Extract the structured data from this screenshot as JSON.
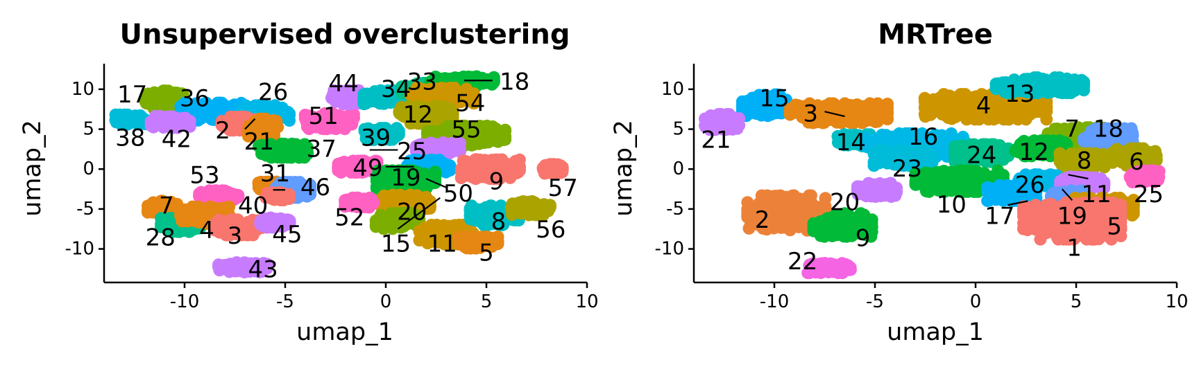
{
  "chart_data": [
    {
      "type": "scatter",
      "title": "Unsupervised overclustering",
      "xlabel": "umap_1",
      "ylabel": "umap_2",
      "xlim": [
        -14,
        10
      ],
      "ylim": [
        -14.2,
        13.2
      ],
      "xticks": [
        -10,
        -5,
        0,
        5,
        10
      ],
      "yticks": [
        -10,
        -5,
        0,
        5,
        10
      ],
      "grid": false,
      "clusters": [
        {
          "label": "17",
          "color": "#7CAE00",
          "x": -11.0,
          "y": 8.6,
          "sx": 0.8,
          "sy": 1.0,
          "lx": -12.6,
          "ly": 9.3
        },
        {
          "label": "36",
          "color": "#00B0F6",
          "x": -8.5,
          "y": 7.2,
          "sx": 1.4,
          "sy": 0.9,
          "lx": -9.5,
          "ly": 8.8
        },
        {
          "label": "26",
          "color": "#00B8E7",
          "x": -6.0,
          "y": 7.0,
          "sx": 1.0,
          "sy": 0.8,
          "lx": -5.6,
          "ly": 9.6
        },
        {
          "label": "38",
          "color": "#00BCD8",
          "x": -12.7,
          "y": 6.2,
          "sx": 0.6,
          "sy": 0.5,
          "lx": -12.7,
          "ly": 3.9
        },
        {
          "label": "42",
          "color": "#C77CFF",
          "x": -10.7,
          "y": 5.9,
          "sx": 0.8,
          "sy": 0.6,
          "lx": -10.4,
          "ly": 3.7
        },
        {
          "label": "2",
          "color": "#F8766D",
          "x": -7.3,
          "y": 5.7,
          "sx": 0.7,
          "sy": 0.7,
          "lx": -8.1,
          "ly": 4.8,
          "leader": [
            -7.0,
            5.0,
            -6.5,
            6.3
          ]
        },
        {
          "label": "21",
          "color": "#E68613",
          "x": -6.1,
          "y": 5.2,
          "sx": 0.6,
          "sy": 0.9,
          "lx": -6.3,
          "ly": 3.4
        },
        {
          "label": "51",
          "color": "#FF61C3",
          "x": -2.8,
          "y": 6.0,
          "sx": 1.0,
          "sy": 0.8,
          "lx": -3.1,
          "ly": 6.6
        },
        {
          "label": "44",
          "color": "#C77CFF",
          "x": -1.8,
          "y": 9.0,
          "sx": 0.8,
          "sy": 0.7,
          "lx": -2.1,
          "ly": 10.7
        },
        {
          "label": "34",
          "color": "#00BFC4",
          "x": 0.0,
          "y": 9.0,
          "sx": 0.9,
          "sy": 0.7,
          "lx": 0.5,
          "ly": 10.0
        },
        {
          "label": "33",
          "color": "#00C08B",
          "x": 2.0,
          "y": 9.8,
          "sx": 1.0,
          "sy": 0.8,
          "lx": 1.8,
          "ly": 10.9
        },
        {
          "label": "18",
          "color": "#00BA38",
          "x": 3.8,
          "y": 11.0,
          "sx": 1.3,
          "sy": 0.5,
          "lx": 6.4,
          "ly": 10.9,
          "leader": [
            3.9,
            11.1,
            5.3,
            11.1
          ]
        },
        {
          "label": "54",
          "color": "#CD9600",
          "x": 2.8,
          "y": 9.2,
          "sx": 1.3,
          "sy": 0.8,
          "lx": 4.2,
          "ly": 8.2
        },
        {
          "label": "12",
          "color": "#ABA300",
          "x": 2.0,
          "y": 6.8,
          "sx": 1.1,
          "sy": 0.9,
          "lx": 1.6,
          "ly": 6.8
        },
        {
          "label": "39",
          "color": "#00BFC4",
          "x": -0.2,
          "y": 4.4,
          "sx": 0.7,
          "sy": 0.6,
          "lx": -0.5,
          "ly": 3.9
        },
        {
          "label": "55",
          "color": "#7CAE00",
          "x": 4.0,
          "y": 4.2,
          "sx": 1.6,
          "sy": 1.0,
          "lx": 4.0,
          "ly": 4.9
        },
        {
          "label": "37",
          "color": "#00BA38",
          "x": -5.1,
          "y": 2.3,
          "sx": 1.0,
          "sy": 0.7,
          "lx": -3.2,
          "ly": 2.5
        },
        {
          "label": "25",
          "color": "#C77CFF",
          "x": 2.6,
          "y": 2.6,
          "sx": 0.9,
          "sy": 0.7,
          "lx": 1.3,
          "ly": 2.2,
          "leader": [
            -0.8,
            2.4,
            0.6,
            2.4
          ]
        },
        {
          "label": "49",
          "color": "#FF61C3",
          "x": -1.4,
          "y": 0.3,
          "sx": 0.8,
          "sy": 0.6,
          "lx": -0.9,
          "ly": 0.1
        },
        {
          "label": "19",
          "color": "#00B0F6",
          "x": 2.1,
          "y": 0.3,
          "sx": 0.9,
          "sy": 0.7,
          "lx": 1.0,
          "ly": -1.1,
          "leader": [
            0.0,
            0.3,
            1.4,
            0.3
          ]
        },
        {
          "label": "9",
          "color": "#F8766D",
          "x": 5.2,
          "y": 0.0,
          "sx": 1.2,
          "sy": 1.0,
          "lx": 5.5,
          "ly": -1.6
        },
        {
          "label": "57",
          "color": "#F8766D",
          "x": 8.3,
          "y": 0.0,
          "sx": 0.4,
          "sy": 0.5,
          "lx": 8.8,
          "ly": -2.4
        },
        {
          "label": "53",
          "color": "#FF61C3",
          "x": -8.3,
          "y": -3.3,
          "sx": 0.8,
          "sy": 0.5,
          "lx": -9.0,
          "ly": -0.8
        },
        {
          "label": "31",
          "color": "#E68613",
          "x": -5.6,
          "y": -2.2,
          "sx": 0.6,
          "sy": 0.5,
          "lx": -5.5,
          "ly": -0.6
        },
        {
          "label": "46",
          "color": "#619CFF",
          "x": -4.6,
          "y": -2.6,
          "sx": 0.7,
          "sy": 0.8,
          "lx": -3.5,
          "ly": -2.3,
          "leader": [
            -5.6,
            -2.6,
            -5.0,
            -2.6
          ]
        },
        {
          "label": "40",
          "color": "#F8766D",
          "x": -5.4,
          "y": -3.4,
          "sx": 0.5,
          "sy": 0.4,
          "lx": -6.6,
          "ly": -4.6
        },
        {
          "label": "50",
          "color": "#00BA38",
          "x": 1.0,
          "y": -1.4,
          "sx": 1.2,
          "sy": 1.0,
          "lx": 3.6,
          "ly": -3.1,
          "leader": [
            2.0,
            -1.2,
            3.0,
            -2.3
          ]
        },
        {
          "label": "7",
          "color": "#E68613",
          "x": -11.1,
          "y": -4.7,
          "sx": 0.6,
          "sy": 0.6,
          "lx": -10.9,
          "ly": -4.6
        },
        {
          "label": "28",
          "color": "#00C08B",
          "x": -10.2,
          "y": -7.0,
          "sx": 0.8,
          "sy": 0.7,
          "lx": -11.2,
          "ly": -8.6
        },
        {
          "label": "4",
          "color": "#E68613",
          "x": -9.0,
          "y": -5.8,
          "sx": 1.0,
          "sy": 0.9,
          "lx": -8.9,
          "ly": -7.7
        },
        {
          "label": "3",
          "color": "#F8766D",
          "x": -7.3,
          "y": -7.3,
          "sx": 1.0,
          "sy": 0.8,
          "lx": -7.5,
          "ly": -8.4
        },
        {
          "label": "45",
          "color": "#C77CFF",
          "x": -5.5,
          "y": -6.7,
          "sx": 0.6,
          "sy": 0.5,
          "lx": -4.9,
          "ly": -8.2
        },
        {
          "label": "20",
          "color": "#CD9600",
          "x": 1.0,
          "y": -4.2,
          "sx": 1.0,
          "sy": 0.8,
          "lx": 1.3,
          "ly": -5.4
        },
        {
          "label": "52",
          "color": "#FF61C3",
          "x": -1.3,
          "y": -4.2,
          "sx": 0.6,
          "sy": 0.5,
          "lx": -1.8,
          "ly": -6.1
        },
        {
          "label": "15",
          "color": "#7CAE00",
          "x": 0.6,
          "y": -6.5,
          "sx": 0.9,
          "sy": 0.8,
          "lx": 0.5,
          "ly": -9.4,
          "leader": [
            0.6,
            -7.5,
            2.7,
            -3.6
          ]
        },
        {
          "label": "11",
          "color": "#CD9600",
          "x": 3.0,
          "y": -8.2,
          "sx": 1.1,
          "sy": 1.0,
          "lx": 2.8,
          "ly": -9.4
        },
        {
          "label": "8",
          "color": "#00BFC4",
          "x": 5.4,
          "y": -5.8,
          "sx": 1.0,
          "sy": 1.0,
          "lx": 5.6,
          "ly": -6.6
        },
        {
          "label": "56",
          "color": "#ABA300",
          "x": 7.2,
          "y": -4.9,
          "sx": 0.8,
          "sy": 0.7,
          "lx": 8.2,
          "ly": -7.6
        },
        {
          "label": "5",
          "color": "#E68613",
          "x": 4.6,
          "y": -9.2,
          "sx": 0.8,
          "sy": 0.6,
          "lx": 5.0,
          "ly": -10.5
        },
        {
          "label": "43",
          "color": "#C77CFF",
          "x": -7.1,
          "y": -12.3,
          "sx": 1.0,
          "sy": 0.5,
          "lx": -6.1,
          "ly": -12.6
        }
      ]
    },
    {
      "type": "scatter",
      "title": "MRTree",
      "xlabel": "umap_1",
      "ylabel": "umap_2",
      "xlim": [
        -14,
        10
      ],
      "ylim": [
        -14.2,
        13.2
      ],
      "xticks": [
        -10,
        -5,
        0,
        5,
        10
      ],
      "yticks": [
        -10,
        -5,
        0,
        5,
        10
      ],
      "grid": false,
      "clusters": [
        {
          "label": "15",
          "color": "#00B0F6",
          "x": -10.5,
          "y": 8.0,
          "sx": 0.9,
          "sy": 1.1,
          "lx": -10.0,
          "ly": 8.8
        },
        {
          "label": "21",
          "color": "#C77CFF",
          "x": -12.6,
          "y": 5.9,
          "sx": 0.7,
          "sy": 0.8,
          "lx": -12.9,
          "ly": 3.6
        },
        {
          "label": "3",
          "color": "#E68613",
          "x": -6.8,
          "y": 7.0,
          "sx": 2.0,
          "sy": 1.0,
          "lx": -8.2,
          "ly": 6.9,
          "leader": [
            -7.5,
            7.2,
            -6.5,
            6.6
          ]
        },
        {
          "label": "14",
          "color": "#00BFC4",
          "x": -6.0,
          "y": 3.6,
          "sx": 0.7,
          "sy": 0.6,
          "lx": -6.2,
          "ly": 3.3
        },
        {
          "label": "4",
          "color": "#CD9600",
          "x": 0.5,
          "y": 7.8,
          "sx": 2.5,
          "sy": 1.3,
          "lx": 0.4,
          "ly": 7.9
        },
        {
          "label": "13",
          "color": "#00BFC4",
          "x": 3.2,
          "y": 10.5,
          "sx": 1.8,
          "sy": 0.8,
          "lx": 2.2,
          "ly": 9.4
        },
        {
          "label": "16",
          "color": "#00B8E7",
          "x": -3.0,
          "y": 3.0,
          "sx": 2.0,
          "sy": 1.2,
          "lx": -2.6,
          "ly": 4.0
        },
        {
          "label": "23",
          "color": "#00BCD8",
          "x": -3.6,
          "y": 1.4,
          "sx": 1.2,
          "sy": 0.8,
          "lx": -3.4,
          "ly": 0.0
        },
        {
          "label": "24",
          "color": "#00C08B",
          "x": 0.3,
          "y": 2.0,
          "sx": 1.1,
          "sy": 0.9,
          "lx": 0.3,
          "ly": 1.7
        },
        {
          "label": "7",
          "color": "#7CAE00",
          "x": 5.0,
          "y": 4.0,
          "sx": 1.2,
          "sy": 1.0,
          "lx": 4.8,
          "ly": 5.0
        },
        {
          "label": "18",
          "color": "#619CFF",
          "x": 6.6,
          "y": 4.0,
          "sx": 1.0,
          "sy": 0.9,
          "lx": 6.6,
          "ly": 5.0
        },
        {
          "label": "12",
          "color": "#00BA38",
          "x": 3.2,
          "y": 2.6,
          "sx": 1.1,
          "sy": 0.8,
          "lx": 2.9,
          "ly": 2.1
        },
        {
          "label": "8",
          "color": "#ABA300",
          "x": 5.4,
          "y": 1.0,
          "sx": 1.0,
          "sy": 0.8,
          "lx": 5.4,
          "ly": 1.0
        },
        {
          "label": "6",
          "color": "#ABA300",
          "x": 7.9,
          "y": 1.5,
          "sx": 0.9,
          "sy": 0.9,
          "lx": 8.0,
          "ly": 0.9
        },
        {
          "label": "26",
          "color": "#00B8E7",
          "x": 3.1,
          "y": -1.4,
          "sx": 0.8,
          "sy": 0.6,
          "lx": 2.7,
          "ly": -2.0
        },
        {
          "label": "11",
          "color": "#C77CFF",
          "x": 5.3,
          "y": -1.8,
          "sx": 0.9,
          "sy": 0.7,
          "lx": 6.0,
          "ly": -3.2,
          "leader": [
            4.6,
            -0.7,
            5.6,
            -1.2
          ]
        },
        {
          "label": "25",
          "color": "#FF61C3",
          "x": 8.4,
          "y": -0.9,
          "sx": 0.6,
          "sy": 0.6,
          "lx": 8.6,
          "ly": -3.2
        },
        {
          "label": "10",
          "color": "#00BA38",
          "x": -0.8,
          "y": -1.5,
          "sx": 1.8,
          "sy": 1.1,
          "lx": -1.2,
          "ly": -4.5
        },
        {
          "label": "17",
          "color": "#00B0F6",
          "x": 1.8,
          "y": -3.0,
          "sx": 1.0,
          "sy": 0.8,
          "lx": 1.2,
          "ly": -5.9,
          "leader": [
            1.6,
            -4.5,
            2.6,
            -4.0
          ]
        },
        {
          "label": "19",
          "color": "#619CFF",
          "x": 4.6,
          "y": -3.4,
          "sx": 0.7,
          "sy": 0.6,
          "lx": 4.8,
          "ly": -5.9,
          "leader": [
            4.3,
            -2.5,
            4.8,
            -3.9
          ]
        },
        {
          "label": "5",
          "color": "#CD9600",
          "x": 6.4,
          "y": -4.7,
          "sx": 1.2,
          "sy": 0.9,
          "lx": 6.9,
          "ly": -7.2
        },
        {
          "label": "1",
          "color": "#F8766D",
          "x": 4.8,
          "y": -6.5,
          "sx": 2.0,
          "sy": 1.9,
          "lx": 4.9,
          "ly": -9.9
        },
        {
          "label": "2",
          "color": "#EC8239",
          "x": -9.4,
          "y": -5.5,
          "sx": 1.6,
          "sy": 1.8,
          "lx": -10.6,
          "ly": -6.4
        },
        {
          "label": "20",
          "color": "#C77CFF",
          "x": -4.9,
          "y": -2.6,
          "sx": 0.8,
          "sy": 0.7,
          "lx": -6.5,
          "ly": -4.2
        },
        {
          "label": "9",
          "color": "#00BA38",
          "x": -6.6,
          "y": -7.0,
          "sx": 1.2,
          "sy": 1.2,
          "lx": -5.6,
          "ly": -8.7
        },
        {
          "label": "22",
          "color": "#F564E3",
          "x": -7.3,
          "y": -12.4,
          "sx": 0.9,
          "sy": 0.5,
          "lx": -8.6,
          "ly": -11.6
        }
      ]
    }
  ]
}
